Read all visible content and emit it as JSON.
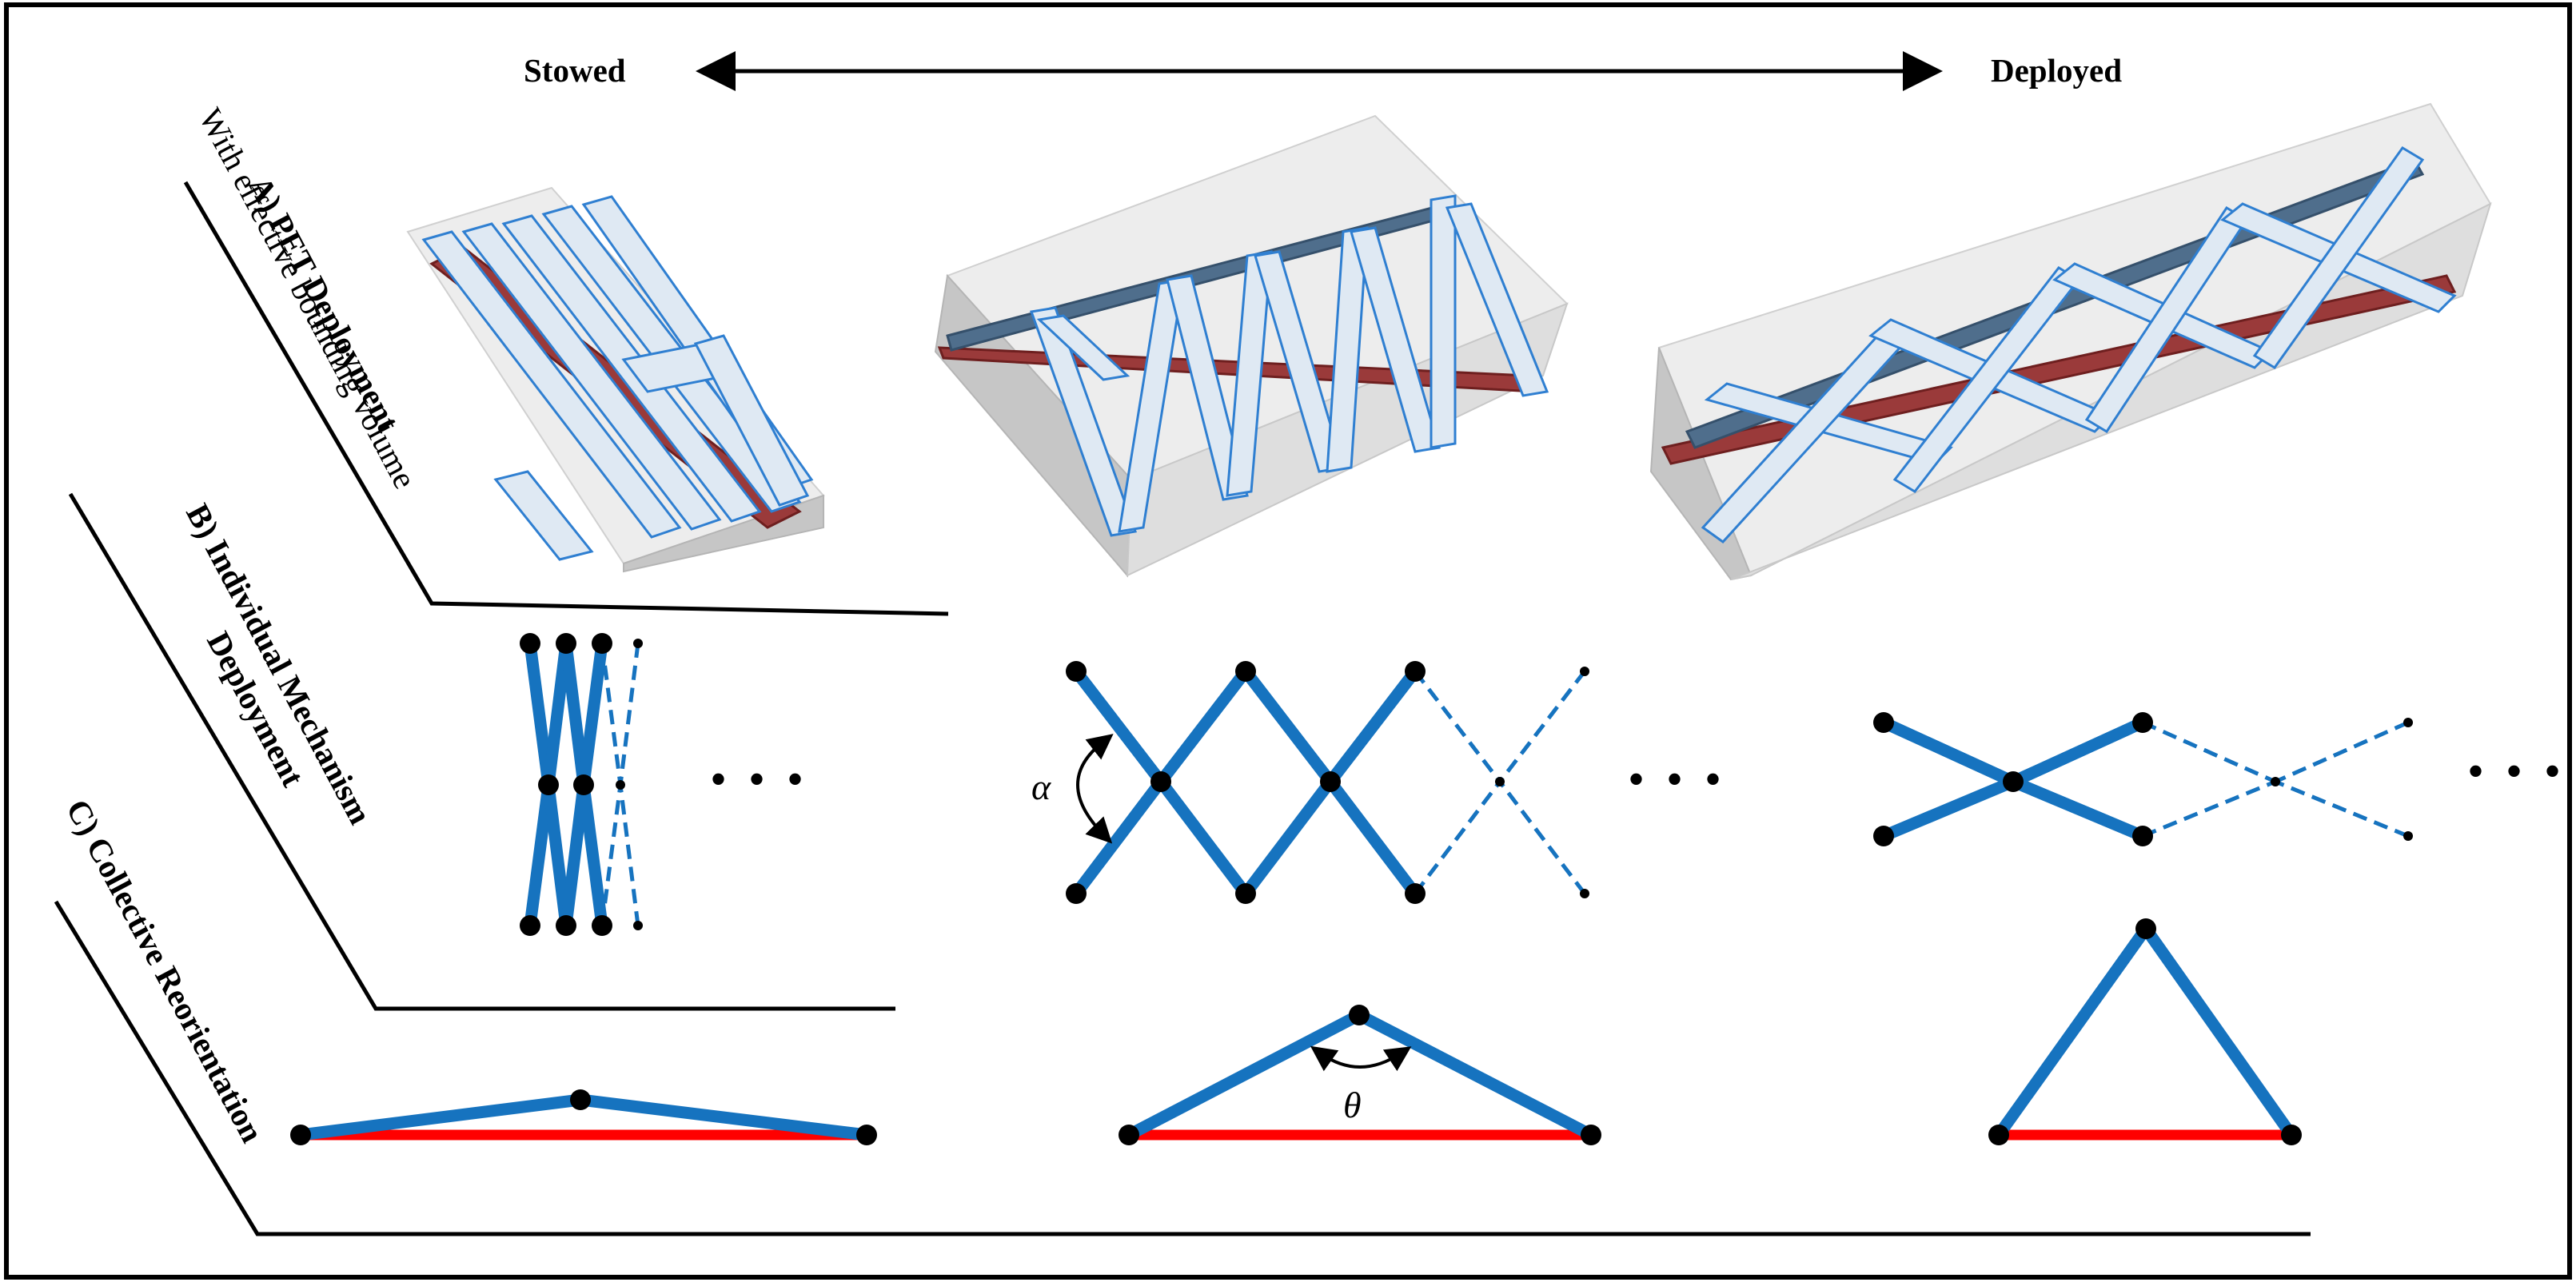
{
  "header": {
    "stowed": "Stowed",
    "deployed": "Deployed"
  },
  "sections": {
    "a_title": "A) PET Deployment",
    "a_subtitle": "With effective bounding volume",
    "b_title_line1": "B) Individual Mechanism",
    "b_title_line2": "Deployment",
    "c_title": "C) Collective Reorientation"
  },
  "symbols": {
    "alpha": "α",
    "theta": "θ",
    "ellipsis": "• • •"
  },
  "colors": {
    "link": "#1673bf",
    "base_link": "#ff0000",
    "joint": "#000000",
    "beam_face": "#dfe9f3"
  }
}
